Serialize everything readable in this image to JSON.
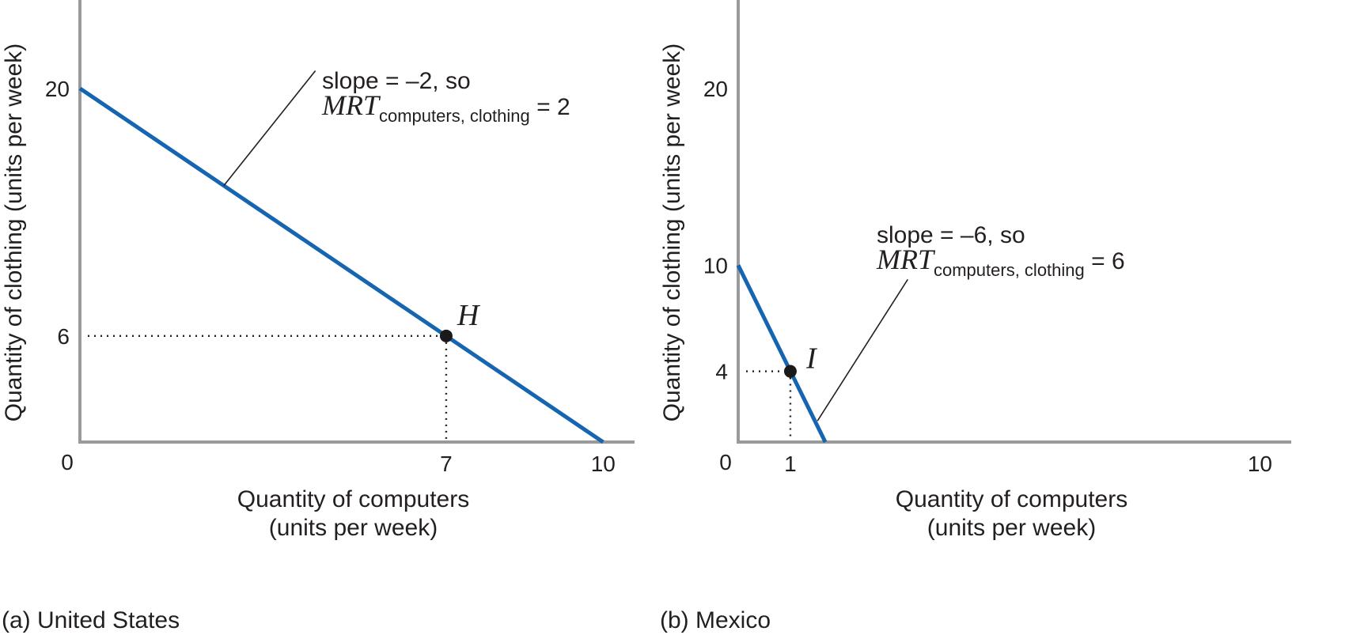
{
  "colors": {
    "line": "#1565b0",
    "axis": "#9a9a9a",
    "text": "#231f20",
    "point": "#1a1a1a"
  },
  "chart_data": [
    {
      "type": "line",
      "panel_label": "(a) United States",
      "xlabel": [
        "Quantity of computers",
        "(units per week)"
      ],
      "ylabel": "Quantity of clothing (units per week)",
      "xlim": [
        0,
        10.6
      ],
      "ylim": [
        0,
        25
      ],
      "origin_label": "0",
      "x_ticks": [
        7,
        10
      ],
      "y_ticks": [
        20,
        6
      ],
      "series": [
        {
          "x": [
            0,
            10
          ],
          "y": [
            20,
            0
          ]
        }
      ],
      "point": {
        "label": "H",
        "x": 7,
        "y": 6
      },
      "annotation": {
        "line1": "slope = –2, so",
        "mrt": "MRT",
        "sub": "computers, clothing",
        "tail": " = 2",
        "pointer_from": [
          4.5,
          21.0
        ],
        "pointer_to": [
          2.75,
          14.5
        ]
      }
    },
    {
      "type": "line",
      "panel_label": "(b) Mexico",
      "xlabel": [
        "Quantity of computers",
        "(units per week)"
      ],
      "ylabel": "Quantity of clothing (units per week)",
      "xlim": [
        0,
        10.6
      ],
      "ylim": [
        0,
        25
      ],
      "origin_label": "0",
      "x_ticks": [
        1,
        10
      ],
      "y_ticks": [
        20,
        10,
        4
      ],
      "series": [
        {
          "x": [
            0,
            1.67
          ],
          "y": [
            10,
            0
          ]
        }
      ],
      "point": {
        "label": "I",
        "x": 1,
        "y": 4
      },
      "annotation": {
        "line1": "slope = –6, so",
        "mrt": "MRT",
        "sub": "computers, clothing",
        "tail": " = 6",
        "pointer_from": [
          3.25,
          9.2
        ],
        "pointer_to": [
          1.52,
          1.2
        ]
      }
    }
  ]
}
